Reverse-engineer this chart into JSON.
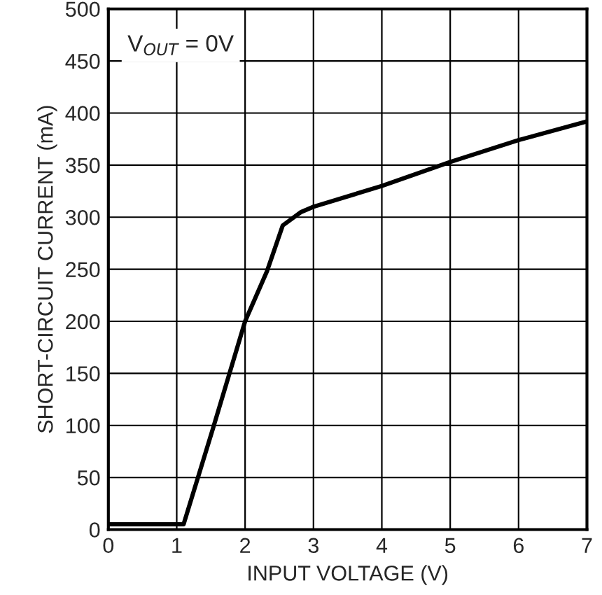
{
  "chart_data": {
    "type": "line",
    "xlabel": "INPUT VOLTAGE (V)",
    "ylabel": "SHORT-CIRCUIT CURRENT (mA)",
    "x": [
      0,
      1.1,
      1.53,
      2.0,
      2.32,
      2.55,
      2.82,
      3.0,
      4.0,
      5.0,
      6.0,
      7.0
    ],
    "series": [
      {
        "color": "#000000",
        "values": [
          5,
          5,
          97,
          200,
          248,
          292,
          305,
          310,
          330,
          353,
          374,
          392
        ]
      }
    ],
    "xlim": [
      0,
      7
    ],
    "xticks": [
      0,
      1,
      2,
      3,
      4,
      5,
      6,
      7
    ],
    "ylim": [
      0,
      500
    ],
    "yticks": [
      0,
      50,
      100,
      150,
      200,
      250,
      300,
      350,
      400,
      450,
      500
    ],
    "grid": true,
    "annotations": [
      "V$_{OUT}$ = 0V"
    ]
  }
}
